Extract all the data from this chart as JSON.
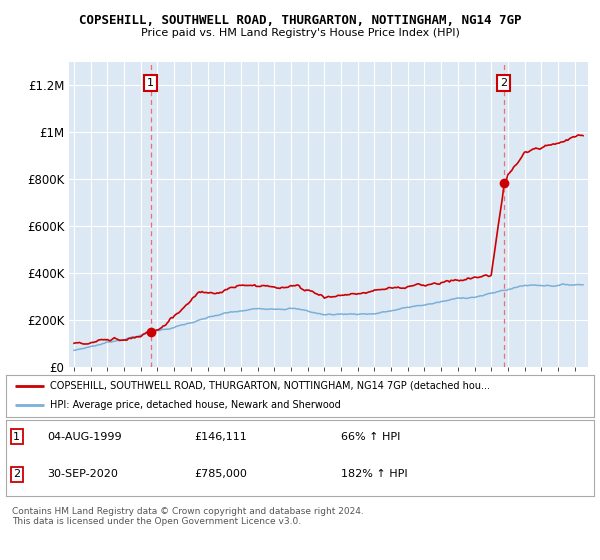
{
  "title_line1": "COPSEHILL, SOUTHWELL ROAD, THURGARTON, NOTTINGHAM, NG14 7GP",
  "title_line2": "Price paid vs. HM Land Registry's House Price Index (HPI)",
  "plot_bg_color": "#dce9f5",
  "red_line_color": "#cc0000",
  "blue_line_color": "#7ab0d8",
  "annotation_box_color": "#cc0000",
  "annotation1": {
    "x_year": 1999.59,
    "y_val": 146111,
    "label": "1"
  },
  "annotation2": {
    "x_year": 2020.75,
    "y_val": 785000,
    "label": "2"
  },
  "legend_line1": "COPSEHILL, SOUTHWELL ROAD, THURGARTON, NOTTINGHAM, NG14 7GP (detached hou...",
  "legend_line2": "HPI: Average price, detached house, Newark and Sherwood",
  "table_row1": [
    "1",
    "04-AUG-1999",
    "£146,111",
    "66% ↑ HPI"
  ],
  "table_row2": [
    "2",
    "30-SEP-2020",
    "£785,000",
    "182% ↑ HPI"
  ],
  "footer": "Contains HM Land Registry data © Crown copyright and database right 2024.\nThis data is licensed under the Open Government Licence v3.0.",
  "ylim": [
    0,
    1300000
  ],
  "yticks": [
    0,
    200000,
    400000,
    600000,
    800000,
    1000000,
    1200000
  ],
  "ylabel_fmt": [
    "£0",
    "£200K",
    "£400K",
    "£600K",
    "£800K",
    "£1M",
    "£1.2M"
  ],
  "xmin": 1994.7,
  "xmax": 2025.8
}
